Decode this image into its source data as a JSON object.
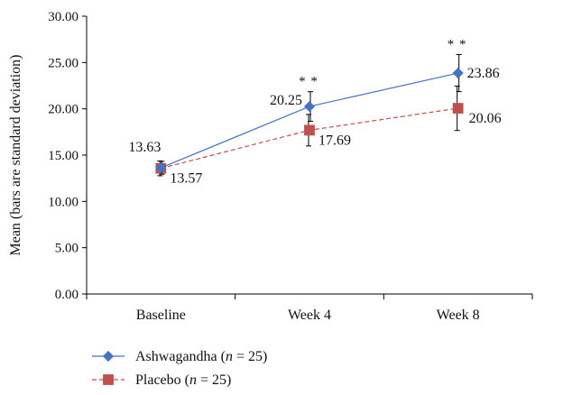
{
  "chart_data": {
    "type": "line",
    "categories": [
      "Baseline",
      "Week 4",
      "Week 8"
    ],
    "ylabel": "Mean (bars are standard deviation)",
    "xlabel": "",
    "ylim": [
      0,
      30
    ],
    "yticks": [
      "0.00",
      "5.00",
      "10.00",
      "15.00",
      "20.00",
      "25.00",
      "30.00"
    ],
    "grid": false,
    "legend_position": "bottom-left",
    "series": [
      {
        "name": "Ashwagandha (n = 25)",
        "legend_name": "Ashwagandha (",
        "legend_italic": "n",
        "legend_rest": " = 25)",
        "values": [
          13.63,
          20.25,
          23.86
        ],
        "value_labels": [
          "13.63",
          "20.25",
          "23.86"
        ],
        "sd": [
          0.7,
          1.6,
          2.0
        ],
        "marker": "diamond",
        "line_style": "solid",
        "color": "#4472c4",
        "significance": [
          "",
          "**",
          "**"
        ]
      },
      {
        "name": "Placebo (n = 25)",
        "legend_name": "Placebo (",
        "legend_italic": "n",
        "legend_rest": " = 25)",
        "values": [
          13.57,
          17.69,
          20.06
        ],
        "value_labels": [
          "13.57",
          "17.69",
          "20.06"
        ],
        "sd": [
          0.8,
          1.7,
          2.4
        ],
        "marker": "square",
        "line_style": "dashed",
        "color": "#c0504d"
      }
    ]
  }
}
